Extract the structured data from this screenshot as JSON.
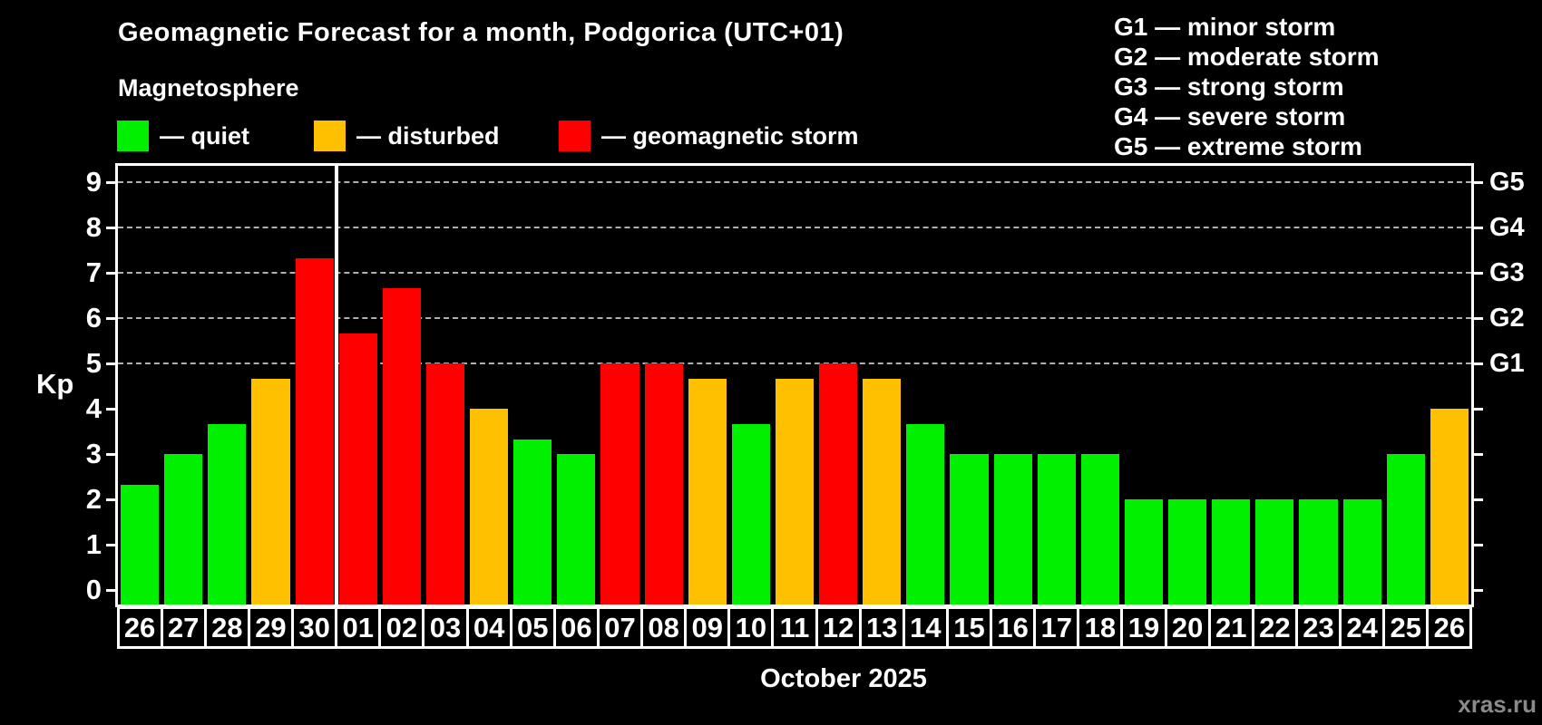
{
  "header": {
    "title": "Geomagnetic Forecast for a month, Podgorica (UTC+01)",
    "subtitle": "Magnetosphere"
  },
  "activity_legend": {
    "items": [
      {
        "name": "quiet",
        "label": "— quiet",
        "color": "#00f000"
      },
      {
        "name": "disturbed",
        "label": "— disturbed",
        "color": "#ffc000"
      },
      {
        "name": "storm",
        "label": "— geomagnetic storm",
        "color": "#ff0000"
      }
    ]
  },
  "storm_scale_legend": {
    "lines": [
      "G1 — minor storm",
      "G2 — moderate storm",
      "G3 — strong storm",
      "G4 — severe storm",
      "G5 — extreme storm"
    ]
  },
  "chart_data": {
    "type": "bar",
    "title": "Geomagnetic Forecast for a month, Podgorica (UTC+01)",
    "ylabel": "Kp",
    "xlabel": "October 2025",
    "categories": [
      "26",
      "27",
      "28",
      "29",
      "30",
      "01",
      "02",
      "03",
      "04",
      "05",
      "06",
      "07",
      "08",
      "09",
      "10",
      "11",
      "12",
      "13",
      "14",
      "15",
      "16",
      "17",
      "18",
      "19",
      "20",
      "21",
      "22",
      "23",
      "24",
      "25",
      "26"
    ],
    "values": [
      2.33,
      3,
      3.67,
      4.67,
      7.33,
      5.67,
      6.67,
      5,
      4,
      3.33,
      3,
      5,
      5,
      4.67,
      3.67,
      4.67,
      5,
      4.67,
      3.67,
      3,
      3,
      3,
      3,
      2,
      2,
      2,
      2,
      2,
      2,
      3,
      4
    ],
    "states": [
      "quiet",
      "quiet",
      "quiet",
      "disturbed",
      "storm",
      "storm",
      "storm",
      "storm",
      "disturbed",
      "quiet",
      "quiet",
      "storm",
      "storm",
      "disturbed",
      "quiet",
      "disturbed",
      "storm",
      "disturbed",
      "quiet",
      "quiet",
      "quiet",
      "quiet",
      "quiet",
      "quiet",
      "quiet",
      "quiet",
      "quiet",
      "quiet",
      "quiet",
      "quiet",
      "disturbed"
    ],
    "state_colors": {
      "quiet": "#00f000",
      "disturbed": "#ffc000",
      "storm": "#ff0000"
    },
    "ylim": [
      0,
      9
    ],
    "yticks": [
      0,
      1,
      2,
      3,
      4,
      5,
      6,
      7,
      8,
      9
    ],
    "gridlines_at": [
      5,
      6,
      7,
      8,
      9
    ],
    "gridline_color": "#b0b0b0",
    "right_axis_labels": [
      {
        "label": "G1",
        "kp": 5
      },
      {
        "label": "G2",
        "kp": 6
      },
      {
        "label": "G3",
        "kp": 7
      },
      {
        "label": "G4",
        "kp": 8
      },
      {
        "label": "G5",
        "kp": 9
      }
    ],
    "month_boundary_after_index": 4,
    "grid": "dashed horizontal lines at Kp 5-9 only",
    "legend_position": "top-left and top-right"
  },
  "footer": {
    "xlabel": "October 2025",
    "watermark": "xras.ru"
  }
}
